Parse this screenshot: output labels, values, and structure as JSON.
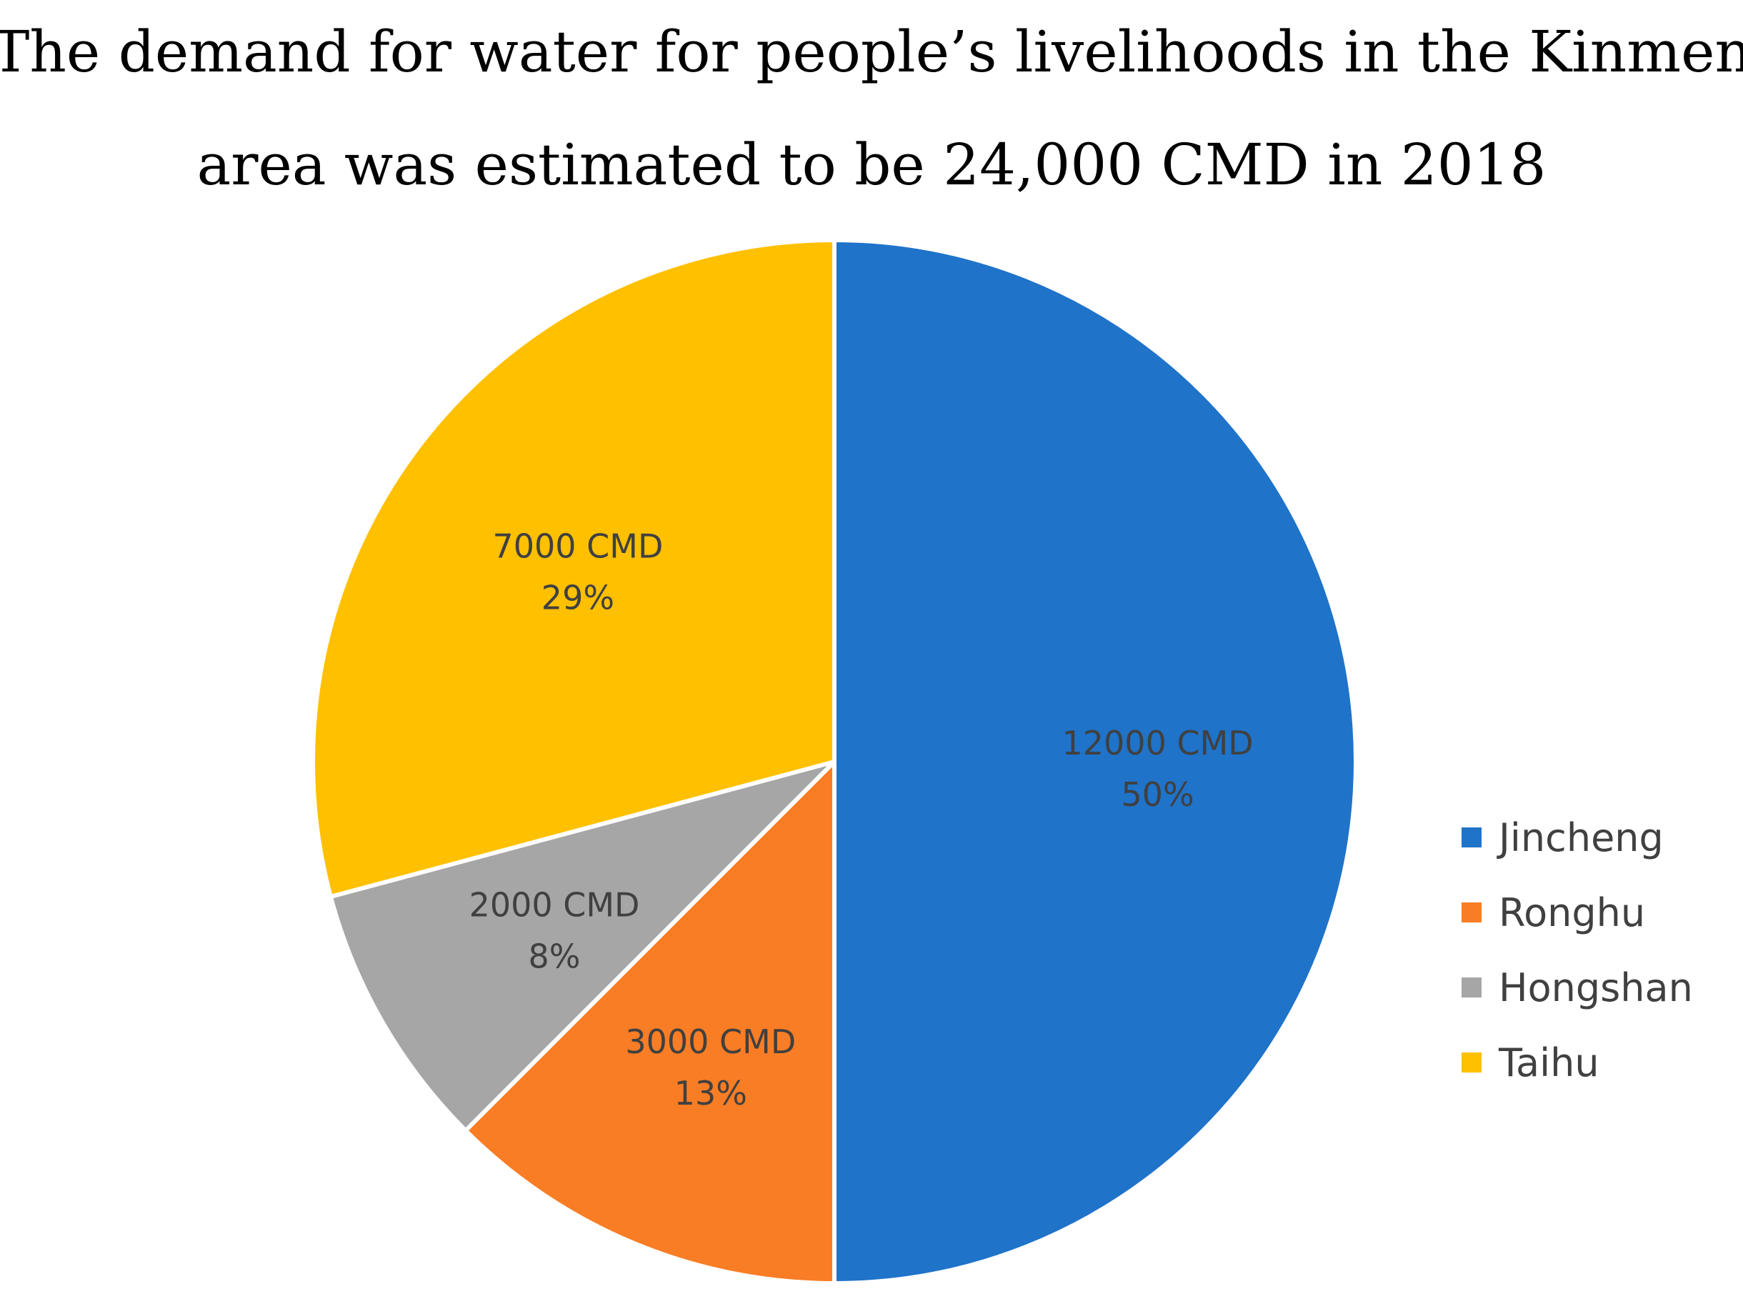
{
  "chart_data": {
    "type": "pie",
    "title_lines": [
      "The demand for water for people’s livelihoods in the Kinmen",
      "area was estimated to be 24,000 CMD in 2018"
    ],
    "total": 24000,
    "unit": "CMD",
    "start_angle_deg": 0,
    "direction": "clockwise",
    "slices": [
      {
        "name": "Jincheng",
        "value": 12000,
        "value_label": "12000 CMD",
        "percent_label": "50%",
        "color": "#1F73C9"
      },
      {
        "name": "Ronghu",
        "value": 3000,
        "value_label": "3000 CMD",
        "percent_label": "13%",
        "color": "#F97D25"
      },
      {
        "name": "Hongshan",
        "value": 2000,
        "value_label": "2000 CMD",
        "percent_label": "8%",
        "color": "#A6A6A6"
      },
      {
        "name": "Taihu",
        "value": 7000,
        "value_label": "7000 CMD",
        "percent_label": "29%",
        "color": "#FFC000"
      }
    ],
    "legend_position": "right"
  }
}
